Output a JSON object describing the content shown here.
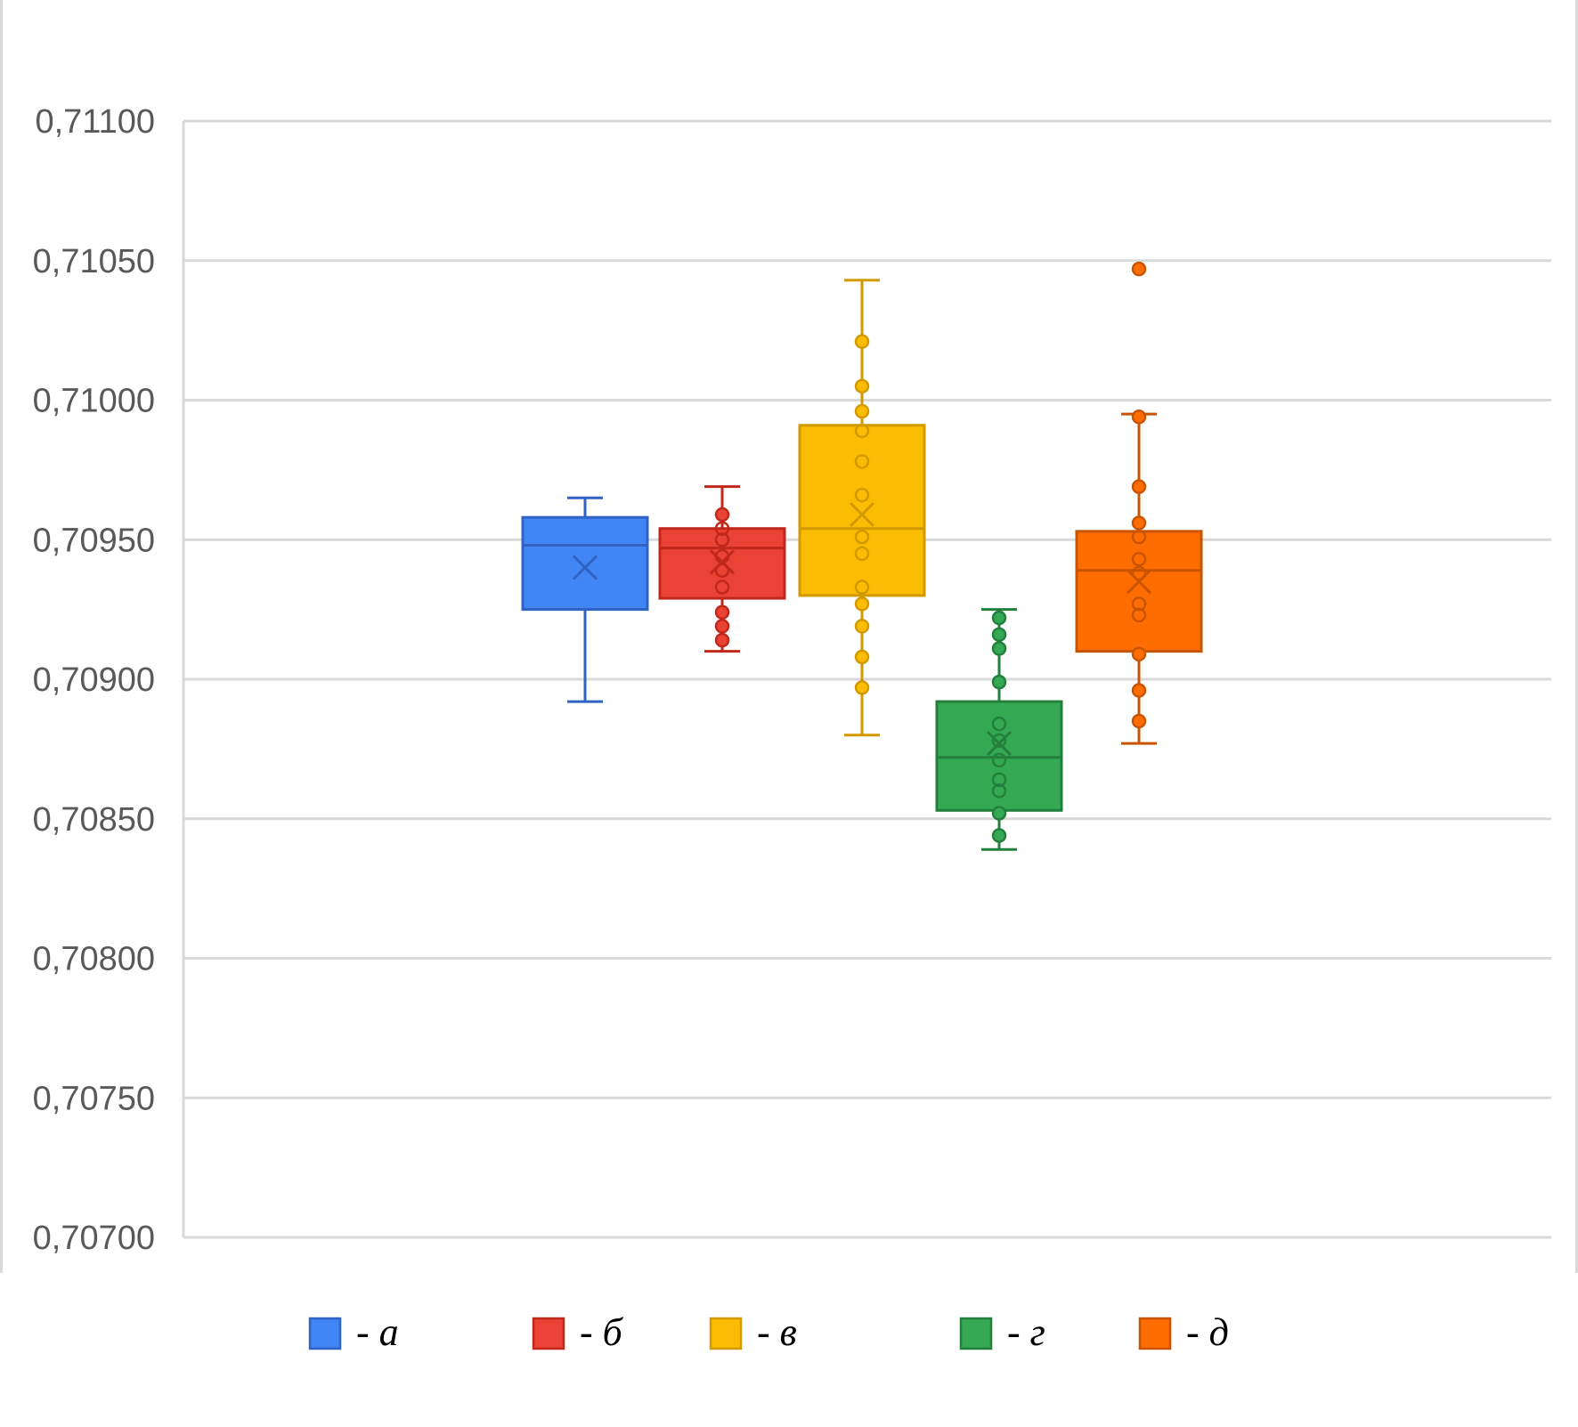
{
  "chart_data": {
    "type": "box",
    "title": "",
    "xlabel": "",
    "ylabel": "",
    "ylim": [
      0.707,
      0.711
    ],
    "yticks": [
      {
        "value": 0.711,
        "label": "0,71100"
      },
      {
        "value": 0.7105,
        "label": "0,71050"
      },
      {
        "value": 0.71,
        "label": "0,71000"
      },
      {
        "value": 0.7095,
        "label": "0,70950"
      },
      {
        "value": 0.709,
        "label": "0,70900"
      },
      {
        "value": 0.7085,
        "label": "0,70850"
      },
      {
        "value": 0.708,
        "label": "0,70800"
      },
      {
        "value": 0.7075,
        "label": "0,70750"
      },
      {
        "value": 0.707,
        "label": "0,70700"
      }
    ],
    "grid": true,
    "series": [
      {
        "name": "- а",
        "letter": "а",
        "color": "#4285f4",
        "line": "#2f63c4",
        "min": 0.70892,
        "q1": 0.70925,
        "median": 0.70948,
        "q3": 0.70958,
        "max": 0.70965,
        "mean": 0.7094,
        "points": []
      },
      {
        "name": "- б",
        "letter": "б",
        "color": "#ea4335",
        "line": "#c1271b",
        "min": 0.7091,
        "q1": 0.70929,
        "median": 0.70947,
        "q3": 0.70954,
        "max": 0.70969,
        "mean": 0.70942,
        "points": [
          0.70959,
          0.70954,
          0.7095,
          0.70944,
          0.70939,
          0.70933,
          0.70924,
          0.70919,
          0.70914
        ]
      },
      {
        "name": "- в",
        "letter": "в",
        "color": "#fbbc04",
        "line": "#d39a00",
        "min": 0.7088,
        "q1": 0.7093,
        "median": 0.70954,
        "q3": 0.70991,
        "max": 0.71043,
        "mean": 0.70959,
        "points": [
          0.71021,
          0.71005,
          0.70996,
          0.70989,
          0.70978,
          0.70966,
          0.70951,
          0.70945,
          0.70933,
          0.70927,
          0.70919,
          0.70908,
          0.70897
        ]
      },
      {
        "name": "- г",
        "letter": "г",
        "color": "#34a853",
        "line": "#23803c",
        "min": 0.70839,
        "q1": 0.70853,
        "median": 0.70872,
        "q3": 0.70892,
        "max": 0.70925,
        "mean": 0.70877,
        "points": [
          0.70922,
          0.70916,
          0.70911,
          0.70899,
          0.70884,
          0.70878,
          0.70871,
          0.70864,
          0.7086,
          0.70852,
          0.70844
        ]
      },
      {
        "name": "- д",
        "letter": "д",
        "color": "#ff6d01",
        "line": "#c95400",
        "min": 0.70877,
        "q1": 0.7091,
        "median": 0.70939,
        "q3": 0.70953,
        "max": 0.70995,
        "mean": 0.70935,
        "points": [
          0.71047,
          0.70994,
          0.70969,
          0.70956,
          0.70951,
          0.70943,
          0.70938,
          0.70927,
          0.70923,
          0.70909,
          0.70896,
          0.70885
        ]
      }
    ]
  }
}
